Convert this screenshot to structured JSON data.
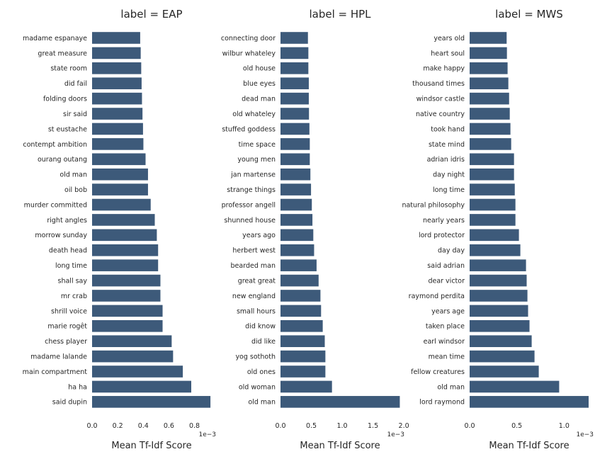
{
  "chart_data": [
    {
      "type": "bar",
      "orientation": "horizontal",
      "title": "label = EAP",
      "xlabel": "Mean Tf-Idf Score",
      "ylabel": "",
      "x_scale_label": "1e−3",
      "xlim": [
        0,
        0.00093
      ],
      "xticks": [
        0,
        0.0002,
        0.0004,
        0.0006,
        0.0008
      ],
      "xtick_labels": [
        "0.0",
        "0.2",
        "0.4",
        "0.6",
        "0.8"
      ],
      "color": "#3d5a7a",
      "categories": [
        "madame espanaye",
        "great measure",
        "state room",
        "did fail",
        "folding doors",
        "sir said",
        "st eustache",
        "contempt ambition",
        "ourang outang",
        "old man",
        "oil bob",
        "murder committed",
        "right angles",
        "morrow sunday",
        "death head",
        "long time",
        "shall say",
        "mr crab",
        "shrill voice",
        "marie rogêt",
        "chess player",
        "madame lalande",
        "main compartment",
        "ha ha",
        "said dupin"
      ],
      "values": [
        0.000376,
        0.00038,
        0.000384,
        0.000387,
        0.00039,
        0.000394,
        0.000398,
        0.000401,
        0.000418,
        0.000437,
        0.000437,
        0.000458,
        0.00049,
        0.000506,
        0.000516,
        0.000516,
        0.000534,
        0.000534,
        0.000551,
        0.000551,
        0.000622,
        0.000633,
        0.000709,
        0.000775,
        0.000925
      ]
    },
    {
      "type": "bar",
      "orientation": "horizontal",
      "title": "label = HPL",
      "xlabel": "Mean Tf-Idf Score",
      "ylabel": "",
      "x_scale_label": "1e−3",
      "xlim": [
        0,
        0.00193
      ],
      "xticks": [
        0,
        0.0005,
        0.001,
        0.0015,
        0.002
      ],
      "xtick_labels": [
        "0.0",
        "0.5",
        "1.0",
        "1.5",
        "2.0"
      ],
      "color": "#3d5a7a",
      "categories": [
        "connecting door",
        "wilbur whateley",
        "old house",
        "blue eyes",
        "dead man",
        "old whateley",
        "stuffed goddess",
        "time space",
        "young men",
        "jan martense",
        "strange things",
        "professor angell",
        "shunned house",
        "years ago",
        "herbert west",
        "bearded man",
        "great great",
        "new england",
        "small hours",
        "did know",
        "did like",
        "yog sothoth",
        "old ones",
        "old woman",
        "old man"
      ],
      "values": [
        0.000445,
        0.000452,
        0.000452,
        0.000459,
        0.000459,
        0.000462,
        0.000469,
        0.000475,
        0.000475,
        0.000485,
        0.000495,
        0.000508,
        0.000518,
        0.000532,
        0.000545,
        0.000585,
        0.000618,
        0.000648,
        0.000658,
        0.000685,
        0.000718,
        0.000728,
        0.000728,
        0.000835,
        0.001935
      ]
    },
    {
      "type": "bar",
      "orientation": "horizontal",
      "title": "label = MWS",
      "xlabel": "Mean Tf-Idf Score",
      "ylabel": "",
      "x_scale_label": "1e−3",
      "xlim": [
        0,
        0.00126
      ],
      "xticks": [
        0,
        0.0005,
        0.001
      ],
      "xtick_labels": [
        "0.0",
        "0.5",
        "1.0"
      ],
      "color": "#3d5a7a",
      "categories": [
        "years old",
        "heart soul",
        "make happy",
        "thousand times",
        "windsor castle",
        "native country",
        "took hand",
        "state mind",
        "adrian idris",
        "day night",
        "long time",
        "natural philosophy",
        "nearly years",
        "lord protector",
        "day day",
        "said adrian",
        "dear victor",
        "raymond perdita",
        "years age",
        "taken place",
        "earl windsor",
        "mean time",
        "fellow creatures",
        "old man",
        "lord raymond"
      ],
      "values": [
        0.000392,
        0.000395,
        0.000402,
        0.00041,
        0.000418,
        0.000425,
        0.000432,
        0.00044,
        0.00047,
        0.00047,
        0.000478,
        0.000485,
        0.000485,
        0.000522,
        0.000537,
        0.000597,
        0.000604,
        0.000612,
        0.000619,
        0.000634,
        0.000657,
        0.000687,
        0.000732,
        0.000948,
        0.00126
      ]
    }
  ]
}
